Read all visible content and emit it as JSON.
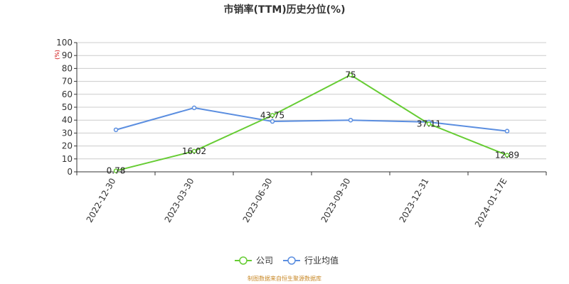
{
  "chart_data": {
    "type": "line",
    "title": "市销率(TTM)历史分位(%)",
    "y_unit": "(%)",
    "categories": [
      "2022-12-30",
      "2023-03-30",
      "2023-06-30",
      "2023-09-30",
      "2023-12-31",
      "2024-01-17E"
    ],
    "ylim": [
      0,
      100
    ],
    "yticks": [
      0,
      10,
      20,
      30,
      40,
      50,
      60,
      70,
      80,
      90,
      100
    ],
    "grid": true,
    "legend_position": "bottom-center",
    "series": [
      {
        "name": "公司",
        "color": "#66cc33",
        "values": [
          0.78,
          16.02,
          43.75,
          75,
          37.11,
          12.89
        ],
        "labels": [
          "0.78",
          "16.02",
          "43.75",
          "75",
          "37.11",
          "12.89"
        ]
      },
      {
        "name": "行业均值",
        "color": "#5b8ee0",
        "values": [
          32.5,
          49.5,
          39,
          40,
          38.5,
          31.5
        ]
      }
    ]
  },
  "source_note": "制图数据来自恒生聚源数据库"
}
